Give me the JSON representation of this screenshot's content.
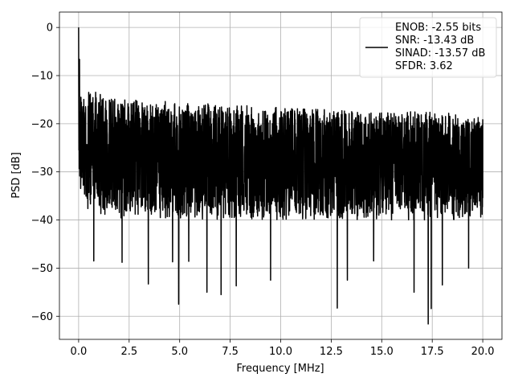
{
  "chart_data": {
    "type": "line",
    "xlabel": "Frequency [MHz]",
    "ylabel": "PSD [dB]",
    "xlim": [
      -0.95,
      20.95
    ],
    "ylim": [
      -64.8,
      3.2
    ],
    "xticks": [
      0.0,
      2.5,
      5.0,
      7.5,
      10.0,
      12.5,
      15.0,
      17.5,
      20.0
    ],
    "xtick_labels": [
      "0.0",
      "2.5",
      "5.0",
      "7.5",
      "10.0",
      "12.5",
      "15.0",
      "17.5",
      "20.0"
    ],
    "yticks": [
      0,
      -10,
      -20,
      -30,
      -40,
      -50,
      -60
    ],
    "ytick_labels": [
      "0",
      "−10",
      "−20",
      "−30",
      "−40",
      "−50",
      "−60"
    ],
    "grid": true,
    "legend_position": "top-right",
    "legend": [
      "ENOB: -2.55 bits",
      "SNR: -13.43 dB",
      "SINAD: -13.57 dB",
      "SFDR: 3.62"
    ],
    "series": [
      {
        "color": "#000000",
        "envelope": {
          "x": [
            0.0,
            0.1,
            0.5,
            1.0,
            2.5,
            5.0,
            7.5,
            10.0,
            12.5,
            15.0,
            17.5,
            20.0
          ],
          "high": [
            0.0,
            -12.5,
            -13.0,
            -13.5,
            -15.0,
            -15.5,
            -16.0,
            -16.5,
            -17.0,
            -17.5,
            -17.5,
            -18.0
          ],
          "low": [
            -31.0,
            -35.0,
            -38.0,
            -40.0,
            -40.0,
            -40.0,
            -40.0,
            -40.0,
            -40.0,
            -40.0,
            -40.0,
            -40.0
          ],
          "median": [
            -22.0,
            -24.0,
            -25.0,
            -26.0,
            -27.0,
            -27.5,
            -28.0,
            -28.0,
            -28.5,
            -28.5,
            -28.5,
            -29.0
          ]
        },
        "spikes": [
          {
            "x": 0.75,
            "y": -48.5
          },
          {
            "x": 2.15,
            "y": -48.8
          },
          {
            "x": 3.45,
            "y": -53.3
          },
          {
            "x": 4.65,
            "y": -48.7
          },
          {
            "x": 4.95,
            "y": -57.5
          },
          {
            "x": 5.45,
            "y": -48.6
          },
          {
            "x": 6.35,
            "y": -55.0
          },
          {
            "x": 7.05,
            "y": -55.5
          },
          {
            "x": 7.8,
            "y": -53.7
          },
          {
            "x": 9.5,
            "y": -52.5
          },
          {
            "x": 12.8,
            "y": -58.3
          },
          {
            "x": 13.3,
            "y": -52.5
          },
          {
            "x": 14.6,
            "y": -48.5
          },
          {
            "x": 16.6,
            "y": -55.0
          },
          {
            "x": 17.3,
            "y": -61.6
          },
          {
            "x": 17.45,
            "y": -58.4
          },
          {
            "x": 18.0,
            "y": -53.5
          },
          {
            "x": 19.3,
            "y": -50.0
          }
        ]
      }
    ]
  }
}
